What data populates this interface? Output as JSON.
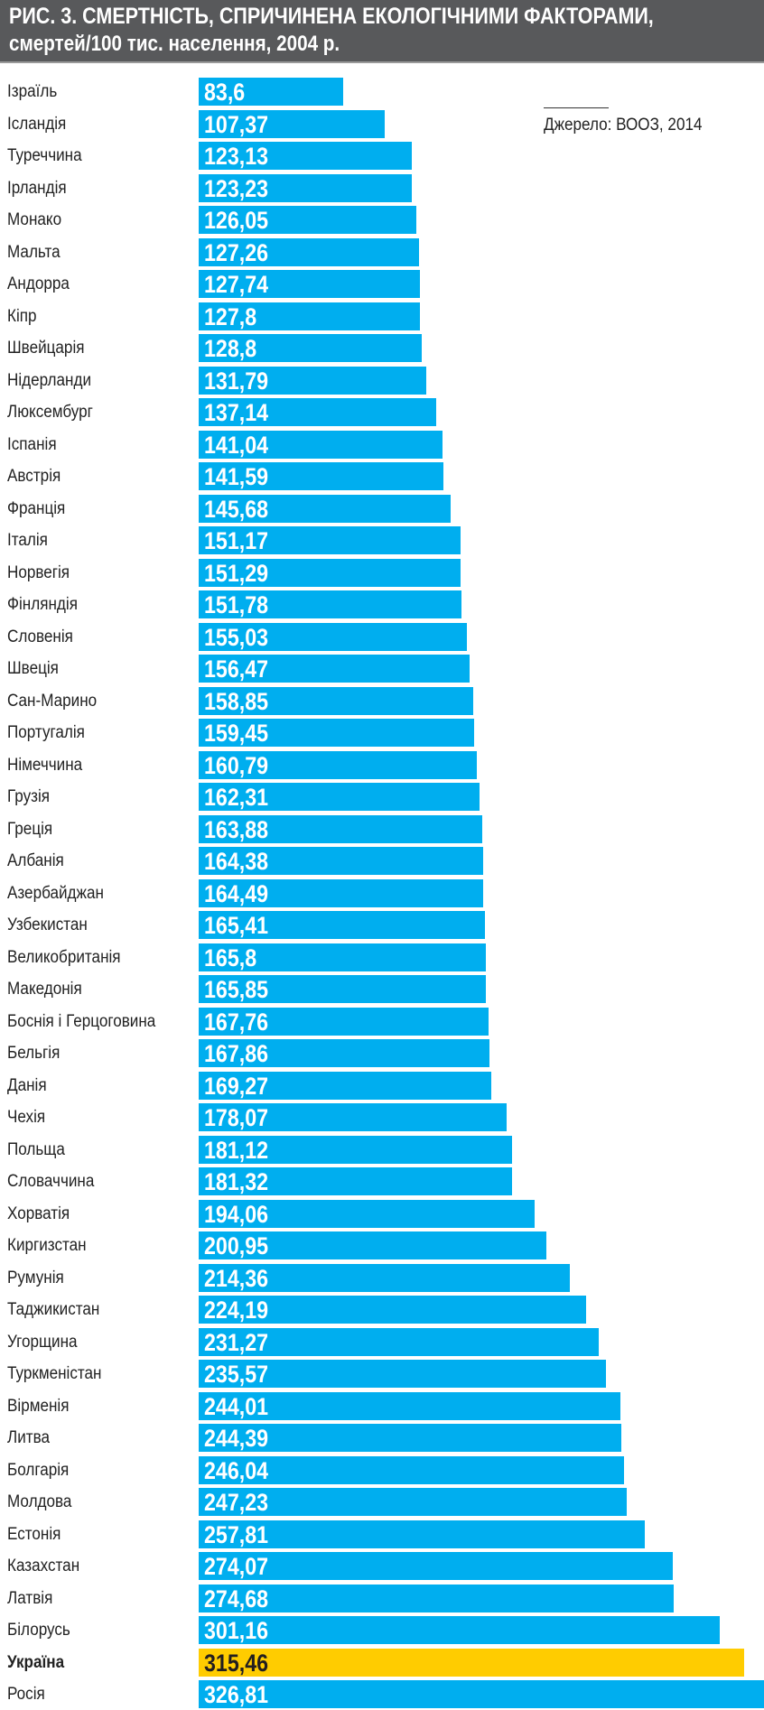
{
  "chart_data": {
    "type": "bar",
    "orientation": "horizontal",
    "title": "РИС. 3. СМЕРТНІСТЬ, СПРИЧИНЕНА ЕКОЛОГІЧНИМИ ФАКТОРАМИ,",
    "subtitle": "смертей/100 тис. населення, 2004 р.",
    "source": "Джерело: ВООЗ, 2014",
    "xlim": [
      0,
      326.81
    ],
    "highlight": "Україна",
    "colors": {
      "bar": "#00aeef",
      "highlight": "#ffcc00",
      "header": "#58595b"
    },
    "categories": [
      "Ізраїль",
      "Ісландія",
      "Туреччина",
      "Ірландія",
      "Монако",
      "Мальта",
      "Андорра",
      "Кіпр",
      "Швейцарія",
      "Нідерланди",
      "Люксембург",
      "Іспанія",
      "Австрія",
      "Франція",
      "Італія",
      "Норвегія",
      "Фінляндія",
      "Словенія",
      "Швеція",
      "Сан-Марино",
      "Португалія",
      "Німеччина",
      "Грузія",
      "Греція",
      "Албанія",
      "Азербайджан",
      "Узбекистан",
      "Великобританія",
      "Македонія",
      "Боснія і Герцоговина",
      "Бельгія",
      "Данія",
      "Чехія",
      "Польща",
      "Словаччина",
      "Хорватія",
      "Киргизстан",
      "Румунія",
      "Таджикистан",
      "Угорщина",
      "Туркменістан",
      "Вірменія",
      "Литва",
      "Болгарія",
      "Молдова",
      "Естонія",
      "Казахстан",
      "Латвія",
      "Білорусь",
      "Україна",
      "Росія"
    ],
    "values": [
      83.6,
      107.37,
      123.13,
      123.23,
      126.05,
      127.26,
      127.74,
      127.8,
      128.8,
      131.79,
      137.14,
      141.04,
      141.59,
      145.68,
      151.17,
      151.29,
      151.78,
      155.03,
      156.47,
      158.85,
      159.45,
      160.79,
      162.31,
      163.88,
      164.38,
      164.49,
      165.41,
      165.8,
      165.85,
      167.76,
      167.86,
      169.27,
      178.07,
      181.12,
      181.32,
      194.06,
      200.95,
      214.36,
      224.19,
      231.27,
      235.57,
      244.01,
      244.39,
      246.04,
      247.23,
      257.81,
      274.07,
      274.68,
      301.16,
      315.46,
      326.81
    ],
    "value_labels": [
      "83,6",
      "107,37",
      "123,13",
      "123,23",
      "126,05",
      "127,26",
      "127,74",
      "127,8",
      "128,8",
      "131,79",
      "137,14",
      "141,04",
      "141,59",
      "145,68",
      "151,17",
      "151,29",
      "151,78",
      "155,03",
      "156,47",
      "158,85",
      "159,45",
      "160,79",
      "162,31",
      "163,88",
      "164,38",
      "164,49",
      "165,41",
      "165,8",
      "165,85",
      "167,76",
      "167,86",
      "169,27",
      "178,07",
      "181,12",
      "181,32",
      "194,06",
      "200,95",
      "214,36",
      "224,19",
      "231,27",
      "235,57",
      "244,01",
      "244,39",
      "246,04",
      "247,23",
      "257,81",
      "274,07",
      "274,68",
      "301,16",
      "315,46",
      "326,81"
    ]
  }
}
